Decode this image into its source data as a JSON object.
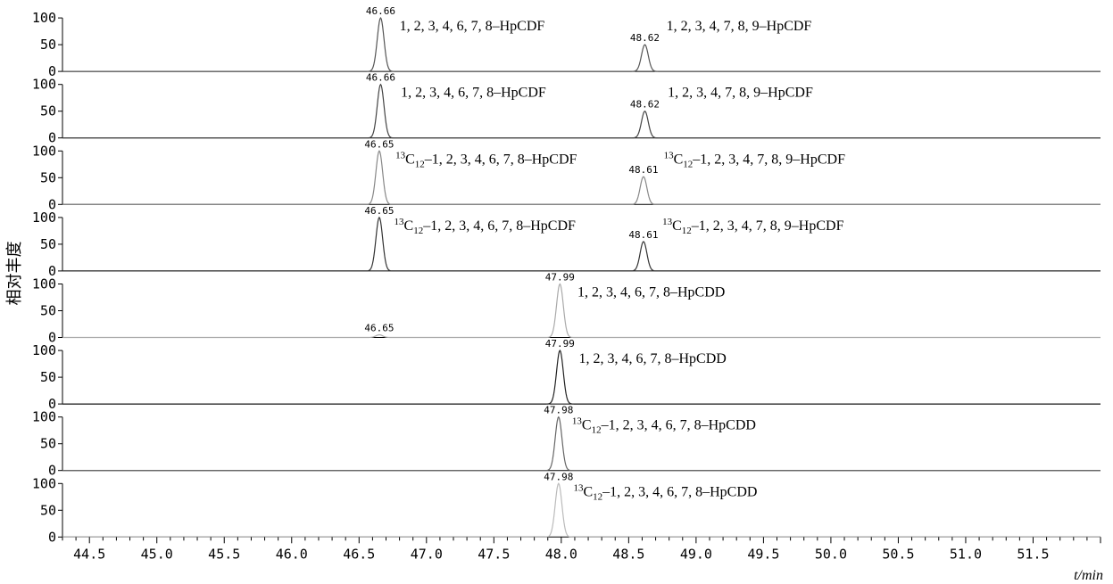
{
  "chart_data": {
    "type": "line",
    "x_unit_label": "t/min",
    "y_axis_title": "相对丰度",
    "xlim": [
      44.3,
      52.0
    ],
    "x_ticks": [
      "44.5",
      "45.0",
      "45.5",
      "46.0",
      "46.5",
      "47.0",
      "47.5",
      "48.0",
      "48.5",
      "49.0",
      "49.5",
      "50.0",
      "50.5",
      "51.0",
      "51.5"
    ],
    "y_ticks": [
      "0",
      "50",
      "100"
    ],
    "panels": [
      {
        "color": "#555555",
        "peaks": [
          {
            "rt": "46.66",
            "x": 46.66,
            "height": 100
          },
          {
            "rt": "48.62",
            "x": 48.62,
            "height": 50
          }
        ],
        "labels": [
          {
            "pre": "1, 2, 3, 4, 6, 7, 8–HpCDF",
            "x": 46.8
          },
          {
            "pre": "1, 2, 3, 4, 7, 8, 9–HpCDF",
            "x": 48.78
          }
        ]
      },
      {
        "color": "#444444",
        "peaks": [
          {
            "rt": "46.66",
            "x": 46.66,
            "height": 100
          },
          {
            "rt": "48.62",
            "x": 48.62,
            "height": 50
          }
        ],
        "labels": [
          {
            "pre": "1, 2, 3, 4, 6, 7, 8–HpCDF",
            "x": 46.81
          },
          {
            "pre": "1, 2, 3, 4, 7, 8, 9–HpCDF",
            "x": 48.79
          }
        ]
      },
      {
        "color": "#888888",
        "peaks": [
          {
            "rt": "46.65",
            "x": 46.65,
            "height": 100
          },
          {
            "rt": "48.61",
            "x": 48.61,
            "height": 52
          }
        ],
        "labels": [
          {
            "sup": "13",
            "base": "C",
            "sub": "12",
            "rest": "–1, 2, 3, 4, 6, 7, 8–HpCDF",
            "x": 46.77
          },
          {
            "sup": "13",
            "base": "C",
            "sub": "12",
            "rest": "–1, 2, 3, 4, 7, 8, 9–HpCDF",
            "x": 48.76
          }
        ]
      },
      {
        "color": "#333333",
        "peaks": [
          {
            "rt": "46.65",
            "x": 46.65,
            "height": 100
          },
          {
            "rt": "48.61",
            "x": 48.61,
            "height": 55
          }
        ],
        "labels": [
          {
            "sup": "13",
            "base": "C",
            "sub": "12",
            "rest": "–1, 2, 3, 4, 6, 7, 8–HpCDF",
            "x": 46.76
          },
          {
            "sup": "13",
            "base": "C",
            "sub": "12",
            "rest": "–1, 2, 3, 4, 7, 8, 9–HpCDF",
            "x": 48.75
          }
        ]
      },
      {
        "color": "#aaaaaa",
        "peaks": [
          {
            "rt": "47.99",
            "x": 47.99,
            "height": 100
          },
          {
            "rt": "46.65",
            "x": 46.65,
            "height": 5
          }
        ],
        "labels": [
          {
            "pre": "1, 2, 3, 4, 6, 7, 8–HpCDD",
            "x": 48.12
          }
        ]
      },
      {
        "color": "#222222",
        "peaks": [
          {
            "rt": "47.99",
            "x": 47.99,
            "height": 100
          }
        ],
        "labels": [
          {
            "pre": "1, 2, 3, 4, 6, 7, 8–HpCDD",
            "x": 48.13
          }
        ]
      },
      {
        "color": "#666666",
        "peaks": [
          {
            "rt": "47.98",
            "x": 47.98,
            "height": 100
          }
        ],
        "labels": [
          {
            "sup": "13",
            "base": "C",
            "sub": "12",
            "rest": "–1, 2, 3, 4, 6, 7, 8–HpCDD",
            "x": 48.08
          }
        ]
      },
      {
        "color": "#bbbbbb",
        "peaks": [
          {
            "rt": "47.98",
            "x": 47.98,
            "height": 100
          }
        ],
        "labels": [
          {
            "sup": "13",
            "base": "C",
            "sub": "12",
            "rest": "–1, 2, 3, 4, 6, 7, 8–HpCDD",
            "x": 48.09
          }
        ]
      }
    ]
  }
}
